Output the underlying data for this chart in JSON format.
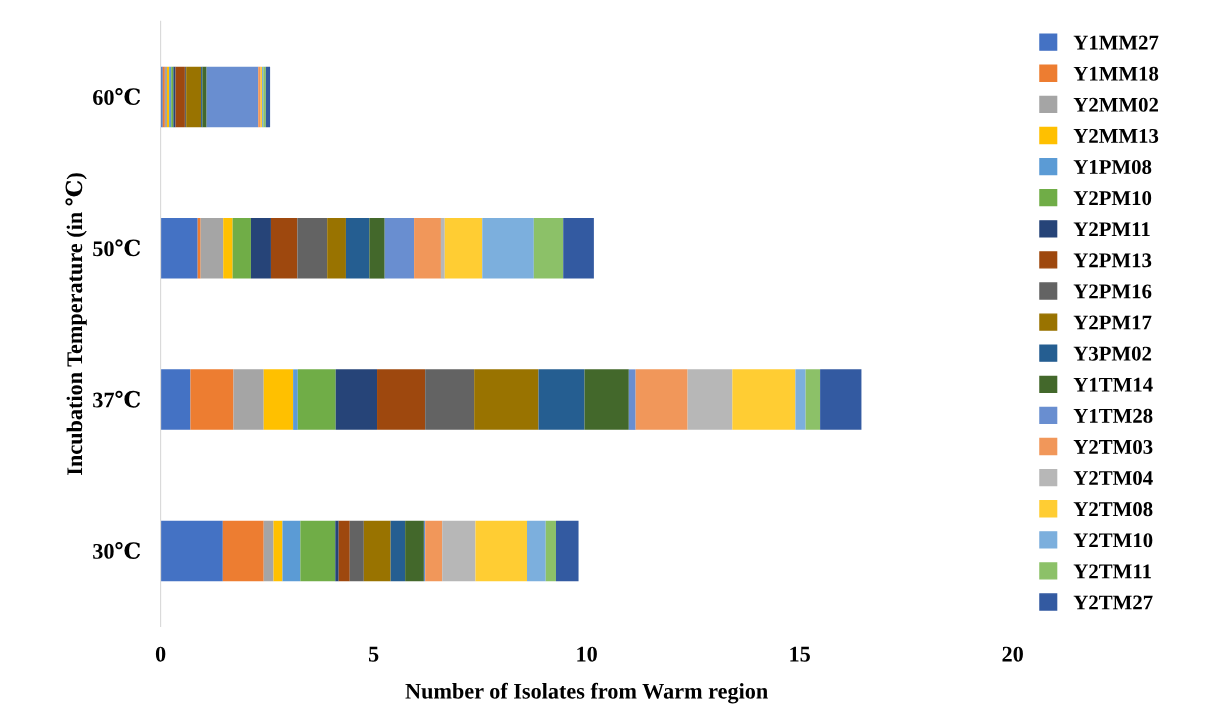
{
  "chart_data": {
    "type": "bar",
    "orientation": "horizontal",
    "stacked": true,
    "categories": [
      "60℃",
      "50℃",
      "37℃",
      "30℃"
    ],
    "xlabel": "Number of Isolates from Warm region",
    "ylabel": "Incubation Temperature (in ℃)",
    "xlim": [
      0,
      20
    ],
    "xticks": [
      0,
      5,
      10,
      15,
      20
    ],
    "grid": false,
    "legend": "right",
    "series": [
      {
        "name": "Y1MM27",
        "color": "#4472c4",
        "values": [
          0.05,
          0.87,
          0.7,
          1.46
        ]
      },
      {
        "name": "Y1MM18",
        "color": "#ed7d31",
        "values": [
          0.05,
          0.07,
          1.01,
          0.96
        ]
      },
      {
        "name": "Y2MM02",
        "color": "#a5a5a5",
        "values": [
          0.05,
          0.53,
          0.71,
          0.23
        ]
      },
      {
        "name": "Y2MM13",
        "color": "#ffc000",
        "values": [
          0.05,
          0.22,
          0.69,
          0.21
        ]
      },
      {
        "name": "Y1PM08",
        "color": "#5b9bd5",
        "values": [
          0.05,
          0,
          0.11,
          0.42
        ]
      },
      {
        "name": "Y2PM10",
        "color": "#70ad47",
        "values": [
          0.05,
          0.43,
          0.89,
          0.82
        ]
      },
      {
        "name": "Y2PM11",
        "color": "#264478",
        "values": [
          0.05,
          0.47,
          0.97,
          0.08
        ]
      },
      {
        "name": "Y2PM13",
        "color": "#9e480e",
        "values": [
          0.22,
          0.62,
          1.13,
          0.26
        ]
      },
      {
        "name": "Y2PM16",
        "color": "#636363",
        "values": [
          0.03,
          0.7,
          1.15,
          0.33
        ]
      },
      {
        "name": "Y2PM17",
        "color": "#997300",
        "values": [
          0.35,
          0.44,
          1.51,
          0.63
        ]
      },
      {
        "name": "Y3PM02",
        "color": "#255e91",
        "values": [
          0.03,
          0.55,
          1.08,
          0.34
        ]
      },
      {
        "name": "Y1TM14",
        "color": "#43682b",
        "values": [
          0.1,
          0.36,
          1.04,
          0.44
        ]
      },
      {
        "name": "Y1TM28",
        "color": "#698ed0",
        "values": [
          1.21,
          0.69,
          0.16,
          0.03
        ]
      },
      {
        "name": "Y2TM03",
        "color": "#f1975a",
        "values": [
          0.06,
          0.63,
          1.22,
          0.4
        ]
      },
      {
        "name": "Y2TM04",
        "color": "#b7b7b7",
        "values": [
          null,
          0.09,
          1.05,
          0.78
        ]
      },
      {
        "name": "Y2TM08",
        "color": "#ffcd33",
        "values": [
          0.03,
          0.88,
          1.48,
          1.21
        ]
      },
      {
        "name": "Y2TM10",
        "color": "#7cafdd",
        "values": [
          0.03,
          1.21,
          0.24,
          0.44
        ]
      },
      {
        "name": "Y2TM11",
        "color": "#8cc168",
        "values": [
          0.06,
          0.69,
          0.34,
          0.24
        ]
      },
      {
        "name": "Y2TM27",
        "color": "#335aa1",
        "values": [
          0.1,
          0.72,
          0.97,
          0.53
        ]
      }
    ]
  }
}
